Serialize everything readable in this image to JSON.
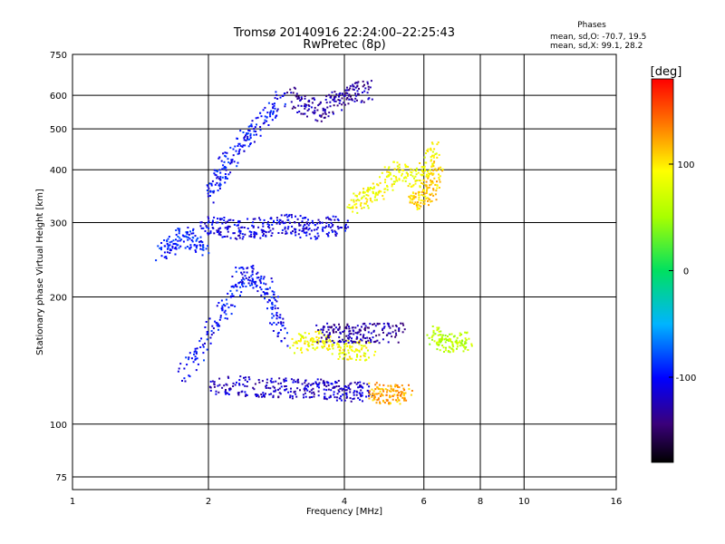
{
  "title": "Tromsø 20140916 22:24:00–22:25:43",
  "subtitle": "RwPretec (8p)",
  "phases": {
    "heading": "Phases",
    "line_o": "mean, sd,O: -70.7, 19.5",
    "line_x": "mean, sd,X:  99.1, 28.2"
  },
  "colorbar": {
    "label": "[deg]",
    "range": [
      -180,
      180
    ],
    "ticks": [
      {
        "value": 100,
        "label": "100"
      },
      {
        "value": 0,
        "label": "0"
      },
      {
        "value": -100,
        "label": "-100"
      }
    ]
  },
  "chart_data": {
    "type": "scatter",
    "xlabel": "Frequency [MHz]",
    "ylabel": "Stationary phase Virtual Height [km]",
    "x_scale": "log",
    "y_scale": "log",
    "xlim": [
      1,
      16
    ],
    "ylim": [
      70,
      750
    ],
    "x_ticks": [
      {
        "value": 1,
        "label": "1"
      },
      {
        "value": 2,
        "label": "2"
      },
      {
        "value": 4,
        "label": "4"
      },
      {
        "value": 6,
        "label": "6"
      },
      {
        "value": 8,
        "label": "8"
      },
      {
        "value": 10,
        "label": "10"
      },
      {
        "value": 16,
        "label": "16"
      }
    ],
    "y_ticks": [
      {
        "value": 75,
        "label": "75"
      },
      {
        "value": 100,
        "label": "100"
      },
      {
        "value": 200,
        "label": "200"
      },
      {
        "value": 300,
        "label": "300"
      },
      {
        "value": 400,
        "label": "400"
      },
      {
        "value": 500,
        "label": "500"
      },
      {
        "value": 600,
        "label": "600"
      },
      {
        "value": 750,
        "label": "750"
      }
    ],
    "grid": true,
    "color_variable": "phase [deg]",
    "traces": [
      {
        "f": [
          1.55,
          1.75,
          1.95
        ],
        "h": [
          255,
          280,
          262
        ],
        "phase": -95
      },
      {
        "f": [
          1.75,
          2.1,
          2.4,
          2.7,
          2.9
        ],
        "h": [
          130,
          180,
          230,
          210,
          160
        ],
        "phase": -100
      },
      {
        "f": [
          1.95,
          2.2,
          2.6,
          3.0,
          3.4,
          4.0
        ],
        "h": [
          300,
          290,
          292,
          300,
          290,
          300
        ],
        "phase": -110
      },
      {
        "f": [
          2.0,
          2.2,
          2.5,
          2.9
        ],
        "h": [
          350,
          420,
          500,
          600
        ],
        "phase": -100
      },
      {
        "f": [
          2.0,
          2.5,
          3.0,
          3.5,
          4.0,
          4.5
        ],
        "h": [
          125,
          123,
          122,
          122,
          120,
          120
        ],
        "phase": -120
      },
      {
        "f": [
          3.0,
          3.5,
          4.0,
          4.5
        ],
        "h": [
          600,
          550,
          600,
          620
        ],
        "phase": -130
      },
      {
        "f": [
          4.1,
          4.6,
          5.2,
          5.9,
          6.3
        ],
        "h": [
          330,
          350,
          400,
          380,
          450
        ],
        "phase": 90
      },
      {
        "f": [
          4.6,
          5.0,
          5.5
        ],
        "h": [
          120,
          118,
          118
        ],
        "phase": 120
      },
      {
        "f": [
          3.1,
          3.5,
          4.0,
          4.6
        ],
        "h": [
          155,
          160,
          150,
          150
        ],
        "phase": 90
      },
      {
        "f": [
          3.5,
          4.0,
          4.5,
          5.3
        ],
        "h": [
          165,
          165,
          165,
          165
        ],
        "phase": -130
      },
      {
        "f": [
          6.2,
          6.8,
          7.5
        ],
        "h": [
          165,
          155,
          160
        ],
        "phase": 60
      },
      {
        "f": [
          5.6,
          6.1,
          6.5
        ],
        "h": [
          330,
          350,
          400
        ],
        "phase": 110
      }
    ]
  }
}
